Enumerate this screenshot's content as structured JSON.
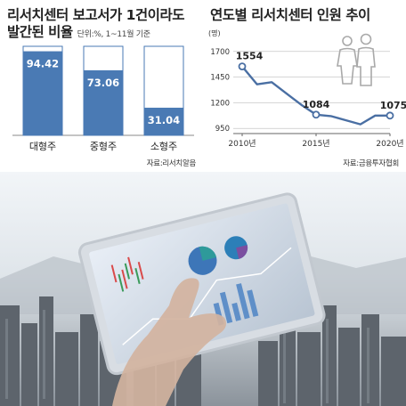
{
  "left": {
    "title_line1": "리서치센터 보고서가 1건이라도",
    "title_line2": "발간된 비율",
    "unit": "단위:%, 1~11월 기준",
    "source": "자료:리서치알음"
  },
  "right": {
    "title": "연도별 리서치센터 인원 추이",
    "source": "자료:금융투자협회",
    "people_icon": "people-icon"
  },
  "colors": {
    "bar": "#4a7ab4",
    "line": "#4a6fa3",
    "grid": "#c8c8c8",
    "bar_outline": "#4a7ab4"
  },
  "chart_data": [
    {
      "type": "bar",
      "categories": [
        "대형주",
        "중형주",
        "소형주"
      ],
      "values": [
        94.42,
        73.06,
        31.04
      ],
      "value_labels": [
        "94.42",
        "73.06",
        "31.04"
      ],
      "ylim": [
        0,
        100
      ]
    },
    {
      "type": "line",
      "x": [
        2010,
        2011,
        2012,
        2013,
        2014,
        2015,
        2016,
        2017,
        2018,
        2019,
        2020
      ],
      "values": [
        1554,
        1380,
        1400,
        1290,
        1180,
        1084,
        1070,
        1030,
        990,
        1075,
        1075
      ],
      "y_unit_label": "(명)",
      "y_ticks": [
        "950",
        "1200",
        "1450",
        "1700"
      ],
      "y_tick_values": [
        950,
        1200,
        1450,
        1700
      ],
      "x_tick_labels": [
        "2010년",
        "2015년",
        "2020년"
      ],
      "x_tick_values": [
        2010,
        2015,
        2020
      ],
      "point_labels": [
        {
          "x": 2010,
          "label": "1554"
        },
        {
          "x": 2015,
          "label": "1084"
        },
        {
          "x": 2020,
          "label": "1075"
        }
      ],
      "ylim": [
        900,
        1750
      ],
      "grid": true
    }
  ]
}
